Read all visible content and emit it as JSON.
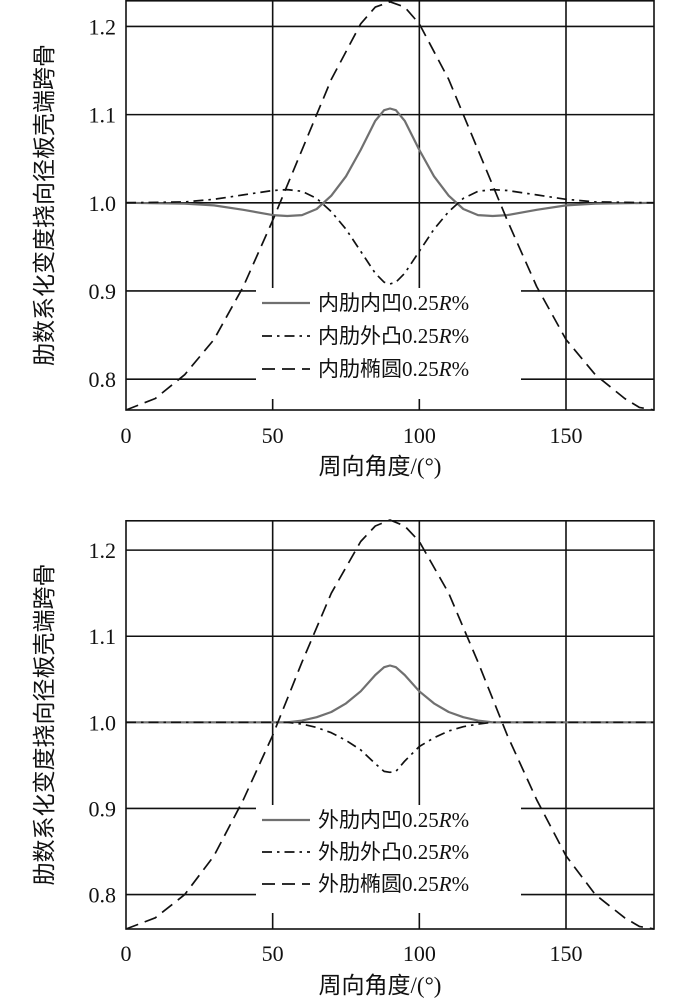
{
  "chart_data": [
    {
      "type": "line",
      "title": "",
      "xlabel": "周向角度/(°)",
      "ylabel": "肋数系化变度挠向径板壳端跨骨",
      "xlim": [
        0,
        180
      ],
      "ylim": [
        0.765,
        1.23
      ],
      "xticks": [
        0,
        50,
        100,
        150
      ],
      "yticks": [
        0.8,
        0.9,
        1.0,
        1.1,
        1.2
      ],
      "grid": true,
      "legend_position": "bottom-center",
      "series": [
        {
          "name": "内肋内凹0.25R%",
          "style": "solid",
          "color": "#707070",
          "x": [
            0,
            20,
            30,
            40,
            50,
            55,
            60,
            65,
            70,
            75,
            80,
            85,
            88,
            90,
            92,
            95,
            100,
            105,
            110,
            115,
            120,
            125,
            130,
            140,
            150,
            160,
            180
          ],
          "y": [
            1.0,
            0.999,
            0.997,
            0.992,
            0.986,
            0.985,
            0.986,
            0.993,
            1.008,
            1.03,
            1.06,
            1.093,
            1.105,
            1.107,
            1.105,
            1.093,
            1.06,
            1.03,
            1.008,
            0.993,
            0.986,
            0.985,
            0.986,
            0.992,
            0.997,
            0.999,
            1.0
          ]
        },
        {
          "name": "内肋外凸0.25R%",
          "style": "dashdot",
          "color": "#111111",
          "x": [
            0,
            20,
            30,
            40,
            50,
            55,
            60,
            65,
            70,
            75,
            80,
            85,
            88,
            90,
            92,
            95,
            100,
            105,
            110,
            115,
            120,
            125,
            130,
            140,
            150,
            160,
            180
          ],
          "y": [
            1.0,
            1.001,
            1.004,
            1.009,
            1.014,
            1.015,
            1.013,
            1.005,
            0.99,
            0.97,
            0.945,
            0.92,
            0.91,
            0.908,
            0.91,
            0.92,
            0.945,
            0.97,
            0.99,
            1.005,
            1.013,
            1.015,
            1.014,
            1.009,
            1.004,
            1.001,
            1.0
          ]
        },
        {
          "name": "内肋椭圆0.25R%",
          "style": "dashed",
          "color": "#111111",
          "x": [
            0,
            10,
            20,
            30,
            40,
            50,
            60,
            70,
            80,
            85,
            90,
            95,
            100,
            110,
            120,
            130,
            140,
            150,
            160,
            170,
            175,
            180
          ],
          "y": [
            0.765,
            0.778,
            0.805,
            0.845,
            0.905,
            0.98,
            1.06,
            1.14,
            1.203,
            1.222,
            1.228,
            1.222,
            1.203,
            1.14,
            1.06,
            0.98,
            0.905,
            0.845,
            0.805,
            0.778,
            0.768,
            0.765
          ]
        }
      ]
    },
    {
      "type": "line",
      "title": "",
      "xlabel": "周向角度/(°)",
      "ylabel": "肋数系化变度挠向径板壳端跨骨",
      "xlim": [
        0,
        180
      ],
      "ylim": [
        0.76,
        1.235
      ],
      "xticks": [
        0,
        50,
        100,
        150
      ],
      "yticks": [
        0.8,
        0.9,
        1.0,
        1.1,
        1.2
      ],
      "grid": true,
      "legend_position": "bottom-center",
      "series": [
        {
          "name": "外肋内凹0.25R%",
          "style": "solid",
          "color": "#707070",
          "x": [
            0,
            55,
            60,
            65,
            70,
            75,
            80,
            85,
            88,
            90,
            92,
            95,
            100,
            105,
            110,
            115,
            120,
            125,
            180
          ],
          "y": [
            1.0,
            1.0,
            1.002,
            1.006,
            1.012,
            1.022,
            1.036,
            1.055,
            1.064,
            1.066,
            1.064,
            1.055,
            1.036,
            1.022,
            1.012,
            1.006,
            1.002,
            1.0,
            1.0
          ]
        },
        {
          "name": "外肋外凸0.25R%",
          "style": "dashdot",
          "color": "#111111",
          "x": [
            0,
            55,
            60,
            65,
            70,
            75,
            80,
            85,
            88,
            90,
            92,
            95,
            100,
            105,
            110,
            115,
            120,
            125,
            180
          ],
          "y": [
            1.0,
            1.0,
            0.998,
            0.994,
            0.988,
            0.979,
            0.968,
            0.952,
            0.943,
            0.942,
            0.943,
            0.955,
            0.972,
            0.982,
            0.99,
            0.995,
            0.998,
            1.0,
            1.0
          ]
        },
        {
          "name": "外肋椭圆0.25R%",
          "style": "dashed",
          "color": "#111111",
          "x": [
            0,
            10,
            20,
            30,
            40,
            50,
            60,
            70,
            80,
            85,
            90,
            95,
            100,
            110,
            120,
            130,
            140,
            150,
            160,
            170,
            175,
            180
          ],
          "y": [
            0.76,
            0.773,
            0.8,
            0.845,
            0.91,
            0.985,
            1.07,
            1.15,
            1.21,
            1.228,
            1.235,
            1.228,
            1.21,
            1.15,
            1.07,
            0.985,
            0.91,
            0.845,
            0.8,
            0.773,
            0.763,
            0.76
          ]
        }
      ]
    }
  ]
}
